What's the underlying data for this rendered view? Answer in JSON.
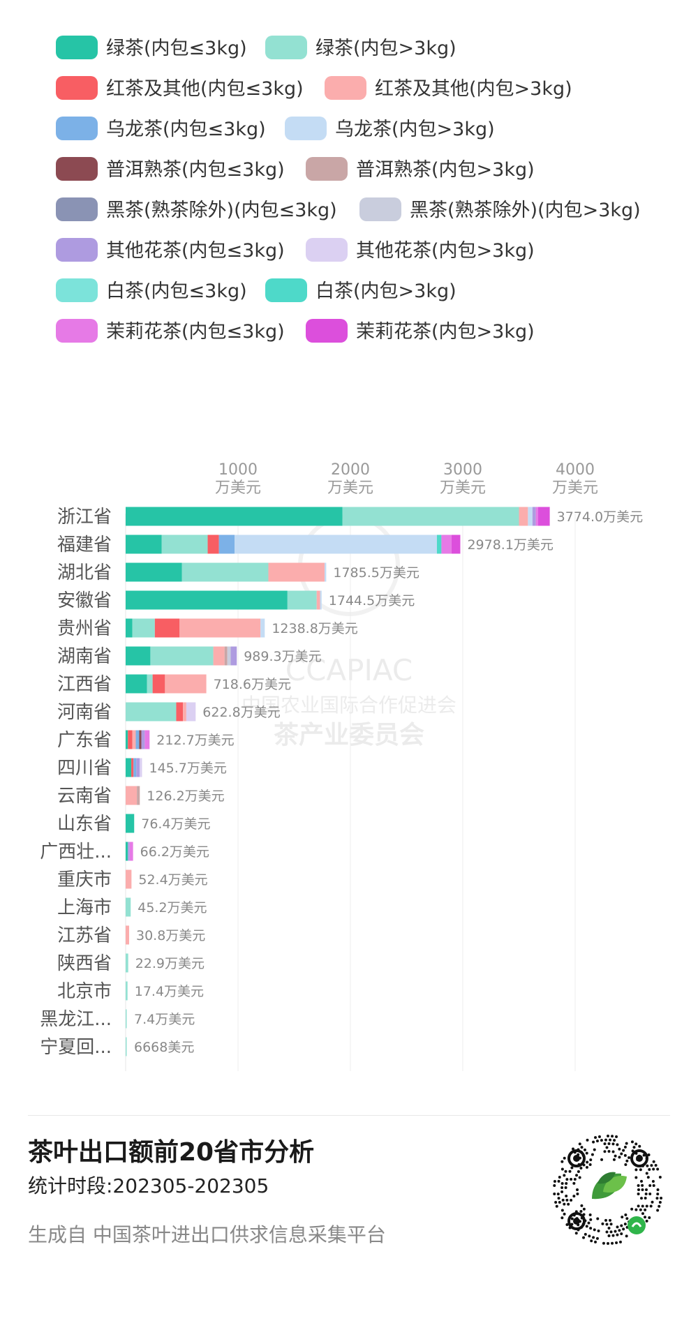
{
  "legend": [
    {
      "label": "绿茶(内包≤3kg)",
      "color": "#26c4a6"
    },
    {
      "label": "绿茶(内包>3kg)",
      "color": "#93e1d2"
    },
    {
      "label": "红茶及其他(内包≤3kg)",
      "color": "#f85e63"
    },
    {
      "label": "红茶及其他(内包>3kg)",
      "color": "#fbadad"
    },
    {
      "label": "乌龙茶(内包≤3kg)",
      "color": "#7cb1e7"
    },
    {
      "label": "乌龙茶(内包>3kg)",
      "color": "#c4dcf4"
    },
    {
      "label": "普洱熟茶(内包≤3kg)",
      "color": "#8c4a52"
    },
    {
      "label": "普洱熟茶(内包>3kg)",
      "color": "#c9a6a6"
    },
    {
      "label": "黑茶(熟茶除外)(内包≤3kg)",
      "color": "#8a93b4"
    },
    {
      "label": "黑茶(熟茶除外)(内包>3kg)",
      "color": "#c9cddd"
    },
    {
      "label": "其他花茶(内包≤3kg)",
      "color": "#ae9be0"
    },
    {
      "label": "其他花茶(内包>3kg)",
      "color": "#dbd0f2"
    },
    {
      "label": "白茶(内包≤3kg)",
      "color": "#7ce3da"
    },
    {
      "label": "白茶(内包>3kg)",
      "color": "#4ed9c9"
    },
    {
      "label": "茉莉花茶(内包≤3kg)",
      "color": "#e67ae6"
    },
    {
      "label": "茉莉花茶(内包>3kg)",
      "color": "#dc4fdc"
    }
  ],
  "chart_data": {
    "type": "bar",
    "orientation": "horizontal",
    "stacked": true,
    "xlim": [
      0,
      4000
    ],
    "grid": true,
    "legend_position": "top",
    "xticks": [
      {
        "value": 1000,
        "line1": "1000",
        "line2": "万美元"
      },
      {
        "value": 2000,
        "line1": "2000",
        "line2": "万美元"
      },
      {
        "value": 3000,
        "line1": "3000",
        "line2": "万美元"
      },
      {
        "value": 4000,
        "line1": "4000",
        "line2": "万美元"
      }
    ],
    "rows": [
      {
        "name": "浙江省",
        "total_label": "3774.0万美元",
        "segments": [
          [
            0,
            1930
          ],
          [
            1,
            1570
          ],
          [
            3,
            80
          ],
          [
            5,
            40
          ],
          [
            10,
            30
          ],
          [
            14,
            20
          ],
          [
            15,
            104
          ]
        ]
      },
      {
        "name": "福建省",
        "total_label": "2978.1万美元",
        "segments": [
          [
            0,
            320
          ],
          [
            1,
            410
          ],
          [
            2,
            100
          ],
          [
            4,
            140
          ],
          [
            5,
            1800
          ],
          [
            13,
            40
          ],
          [
            14,
            90
          ],
          [
            15,
            78
          ]
        ]
      },
      {
        "name": "湖北省",
        "total_label": "1785.5万美元",
        "segments": [
          [
            0,
            500
          ],
          [
            1,
            770
          ],
          [
            3,
            500
          ],
          [
            5,
            15
          ]
        ]
      },
      {
        "name": "安徽省",
        "total_label": "1744.5万美元",
        "segments": [
          [
            0,
            1440
          ],
          [
            1,
            260
          ],
          [
            3,
            30
          ],
          [
            5,
            14
          ]
        ]
      },
      {
        "name": "贵州省",
        "total_label": "1238.8万美元",
        "segments": [
          [
            0,
            60
          ],
          [
            1,
            200
          ],
          [
            2,
            220
          ],
          [
            3,
            720
          ],
          [
            5,
            38
          ]
        ]
      },
      {
        "name": "湖南省",
        "total_label": "989.3万美元",
        "segments": [
          [
            0,
            220
          ],
          [
            1,
            560
          ],
          [
            3,
            100
          ],
          [
            7,
            25
          ],
          [
            9,
            30
          ],
          [
            10,
            54
          ]
        ]
      },
      {
        "name": "江西省",
        "total_label": "718.6万美元",
        "segments": [
          [
            0,
            190
          ],
          [
            1,
            50
          ],
          [
            2,
            110
          ],
          [
            3,
            368
          ]
        ]
      },
      {
        "name": "河南省",
        "total_label": "622.8万美元",
        "segments": [
          [
            1,
            450
          ],
          [
            2,
            60
          ],
          [
            3,
            30
          ],
          [
            11,
            83
          ]
        ]
      },
      {
        "name": "广东省",
        "total_label": "212.7万美元",
        "segments": [
          [
            0,
            20
          ],
          [
            2,
            40
          ],
          [
            3,
            30
          ],
          [
            4,
            30
          ],
          [
            6,
            20
          ],
          [
            10,
            30
          ],
          [
            14,
            43
          ]
        ]
      },
      {
        "name": "四川省",
        "total_label": "145.7万美元",
        "segments": [
          [
            0,
            50
          ],
          [
            2,
            20
          ],
          [
            4,
            25
          ],
          [
            10,
            30
          ],
          [
            11,
            21
          ]
        ]
      },
      {
        "name": "云南省",
        "total_label": "126.2万美元",
        "segments": [
          [
            3,
            100
          ],
          [
            7,
            26
          ]
        ]
      },
      {
        "name": "山东省",
        "total_label": "76.4万美元",
        "segments": [
          [
            0,
            76
          ]
        ]
      },
      {
        "name": "广西壮...",
        "total_label": "66.2万美元",
        "segments": [
          [
            0,
            20
          ],
          [
            10,
            16
          ],
          [
            14,
            30
          ]
        ]
      },
      {
        "name": "重庆市",
        "total_label": "52.4万美元",
        "segments": [
          [
            3,
            52
          ]
        ]
      },
      {
        "name": "上海市",
        "total_label": "45.2万美元",
        "segments": [
          [
            1,
            45
          ]
        ]
      },
      {
        "name": "江苏省",
        "total_label": "30.8万美元",
        "segments": [
          [
            3,
            31
          ]
        ]
      },
      {
        "name": "陕西省",
        "total_label": "22.9万美元",
        "segments": [
          [
            1,
            23
          ]
        ]
      },
      {
        "name": "北京市",
        "total_label": "17.4万美元",
        "segments": [
          [
            1,
            17
          ]
        ]
      },
      {
        "name": "黑龙江...",
        "total_label": "7.4万美元",
        "segments": [
          [
            1,
            7
          ]
        ]
      },
      {
        "name": "宁夏回...",
        "total_label": "6668美元",
        "segments": [
          [
            1,
            0.67
          ]
        ]
      }
    ]
  },
  "watermark": {
    "line1": "CCAPIAC",
    "line2": "中国农业国际合作促进会",
    "line3": "茶产业委员会"
  },
  "footer": {
    "title": "茶叶出口额前20省市分析",
    "period": "统计时段:202305-202305",
    "source": "生成自 中国茶叶进出口供求信息采集平台"
  },
  "qr_icon": "mini-program-qr-code"
}
